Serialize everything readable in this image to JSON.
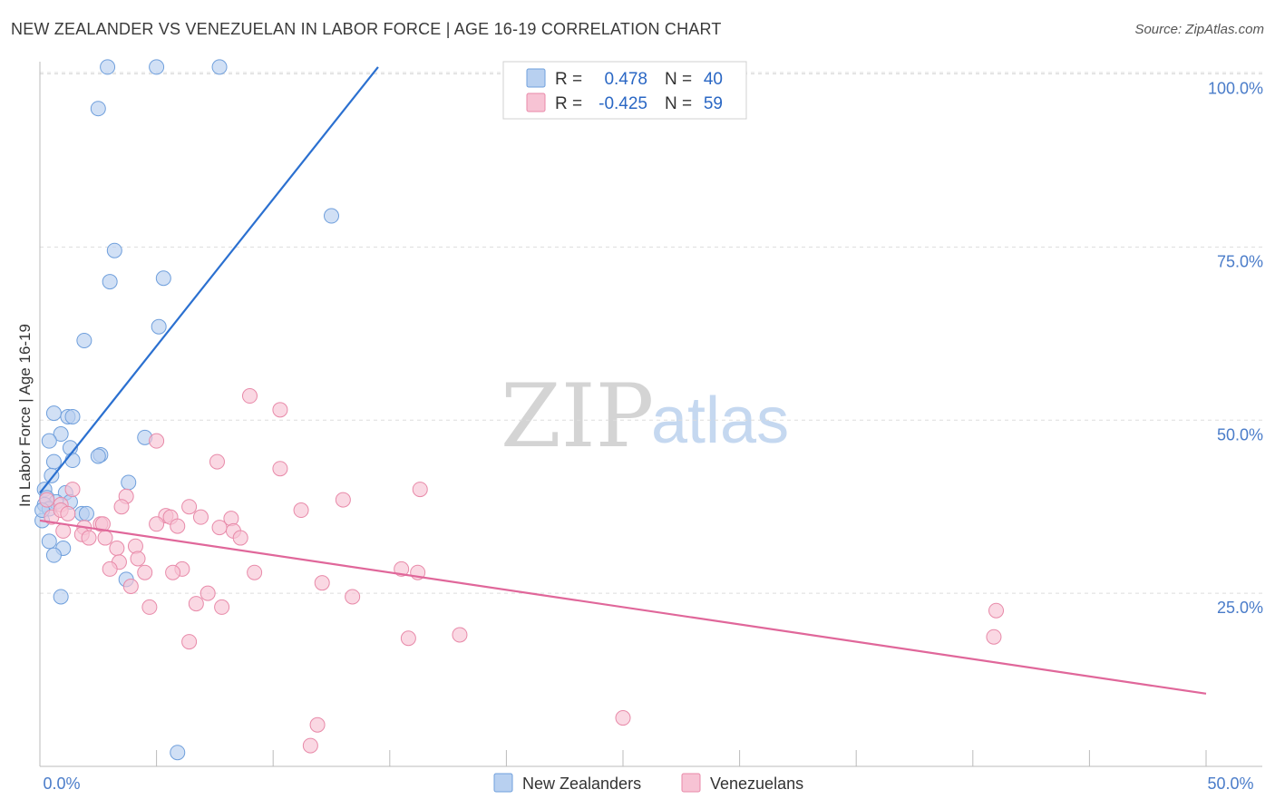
{
  "title": "NEW ZEALANDER VS VENEZUELAN IN LABOR FORCE | AGE 16-19 CORRELATION CHART",
  "source": "Source: ZipAtlas.com",
  "watermark": {
    "zip": "ZIP",
    "atlas": "atlas"
  },
  "colors": {
    "blue_fill": "#b8d0f0",
    "blue_stroke": "#6f9fdc",
    "blue_line": "#2b70d0",
    "pink_fill": "#f7c3d4",
    "pink_stroke": "#e88aa9",
    "pink_line": "#e0679a",
    "grid": "#dddddd",
    "tick_text": "#4a7cc9"
  },
  "legend": {
    "r_label": "R =",
    "n_label": "N =",
    "rows": [
      {
        "r": "0.478",
        "n": "40",
        "color": "blue"
      },
      {
        "r": "-0.425",
        "n": "59",
        "color": "pink"
      }
    ]
  },
  "chart_data": {
    "type": "scatter",
    "title": "NEW ZEALANDER VS VENEZUELAN IN LABOR FORCE | AGE 16-19 CORRELATION CHART",
    "xlabel": "",
    "ylabel": "In Labor Force | Age 16-19",
    "xlim": [
      0,
      50
    ],
    "ylim": [
      0,
      102
    ],
    "x_tick_labels": [
      "0.0%",
      "50.0%"
    ],
    "y_ticks": [
      25,
      50,
      75,
      100
    ],
    "y_tick_labels": [
      "25.0%",
      "50.0%",
      "75.0%",
      "100.0%"
    ],
    "series": [
      {
        "name": "New Zealanders",
        "color": "blue",
        "r": 0.478,
        "n": 40,
        "trend": {
          "x": [
            0.0,
            14.5
          ],
          "y": [
            39.5,
            101.0
          ]
        },
        "points": [
          [
            2.9,
            101.0
          ],
          [
            5.0,
            101.0
          ],
          [
            7.7,
            101.0
          ],
          [
            2.5,
            95.0
          ],
          [
            12.5,
            79.5
          ],
          [
            3.2,
            74.5
          ],
          [
            5.3,
            70.5
          ],
          [
            3.0,
            70.0
          ],
          [
            5.1,
            63.5
          ],
          [
            1.9,
            61.5
          ],
          [
            0.6,
            51.0
          ],
          [
            1.2,
            50.5
          ],
          [
            1.4,
            50.5
          ],
          [
            4.5,
            47.5
          ],
          [
            0.9,
            48.0
          ],
          [
            0.4,
            47.0
          ],
          [
            1.3,
            46.0
          ],
          [
            2.6,
            45.0
          ],
          [
            2.5,
            44.8
          ],
          [
            1.4,
            44.2
          ],
          [
            0.6,
            44.0
          ],
          [
            0.5,
            42.0
          ],
          [
            3.8,
            41.0
          ],
          [
            0.2,
            40.0
          ],
          [
            1.1,
            39.5
          ],
          [
            0.3,
            38.8
          ],
          [
            0.7,
            38.2
          ],
          [
            1.3,
            38.2
          ],
          [
            0.2,
            37.8
          ],
          [
            0.4,
            37.2
          ],
          [
            1.8,
            36.5
          ],
          [
            2.0,
            36.5
          ],
          [
            0.1,
            35.5
          ],
          [
            0.4,
            32.5
          ],
          [
            1.0,
            31.5
          ],
          [
            0.6,
            30.5
          ],
          [
            3.7,
            27.0
          ],
          [
            0.9,
            24.5
          ],
          [
            5.9,
            2.0
          ],
          [
            0.1,
            37.0
          ]
        ]
      },
      {
        "name": "Venezuelans",
        "color": "pink",
        "r": -0.425,
        "n": 59,
        "trend": {
          "x": [
            0.0,
            50.0
          ],
          "y": [
            35.5,
            10.5
          ]
        },
        "points": [
          [
            9.0,
            53.5
          ],
          [
            10.3,
            51.5
          ],
          [
            5.0,
            47.0
          ],
          [
            7.6,
            44.0
          ],
          [
            10.3,
            43.0
          ],
          [
            16.3,
            40.0
          ],
          [
            0.3,
            38.5
          ],
          [
            3.7,
            39.0
          ],
          [
            1.4,
            40.0
          ],
          [
            13.0,
            38.5
          ],
          [
            6.4,
            37.5
          ],
          [
            0.9,
            37.8
          ],
          [
            11.2,
            37.0
          ],
          [
            5.4,
            36.2
          ],
          [
            5.6,
            36.0
          ],
          [
            6.9,
            36.0
          ],
          [
            8.2,
            35.8
          ],
          [
            5.0,
            35.0
          ],
          [
            2.6,
            35.0
          ],
          [
            0.5,
            36.0
          ],
          [
            1.9,
            34.5
          ],
          [
            5.9,
            34.7
          ],
          [
            7.7,
            34.5
          ],
          [
            8.3,
            34.0
          ],
          [
            1.8,
            33.5
          ],
          [
            2.1,
            33.0
          ],
          [
            2.8,
            33.0
          ],
          [
            8.6,
            33.0
          ],
          [
            4.1,
            31.8
          ],
          [
            3.3,
            31.5
          ],
          [
            4.2,
            30.0
          ],
          [
            3.4,
            29.5
          ],
          [
            6.1,
            28.5
          ],
          [
            3.0,
            28.5
          ],
          [
            9.2,
            28.0
          ],
          [
            4.5,
            28.0
          ],
          [
            5.7,
            28.0
          ],
          [
            15.5,
            28.5
          ],
          [
            16.2,
            28.0
          ],
          [
            12.1,
            26.5
          ],
          [
            3.9,
            26.0
          ],
          [
            7.2,
            25.0
          ],
          [
            13.4,
            24.5
          ],
          [
            6.7,
            23.5
          ],
          [
            4.7,
            23.0
          ],
          [
            7.8,
            23.0
          ],
          [
            41.0,
            22.5
          ],
          [
            18.0,
            19.0
          ],
          [
            15.8,
            18.5
          ],
          [
            40.9,
            18.7
          ],
          [
            6.4,
            18.0
          ],
          [
            25.0,
            7.0
          ],
          [
            11.9,
            6.0
          ],
          [
            11.6,
            3.0
          ],
          [
            0.9,
            37.0
          ],
          [
            1.2,
            36.5
          ],
          [
            2.7,
            35.0
          ],
          [
            1.0,
            34.0
          ],
          [
            3.5,
            37.5
          ]
        ]
      }
    ],
    "legend_position": "bottom-center"
  },
  "bottom_legend": [
    "New Zealanders",
    "Venezuelans"
  ]
}
